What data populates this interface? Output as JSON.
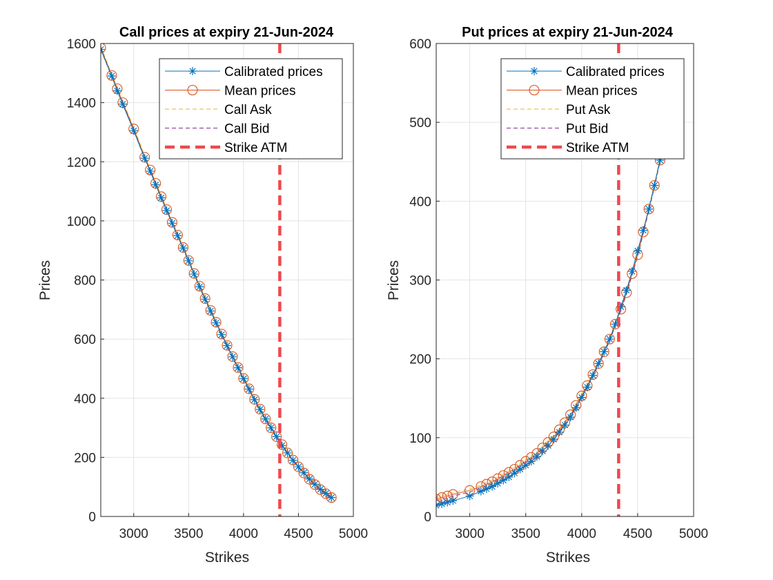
{
  "chart_data": [
    {
      "type": "line",
      "title": "Call prices at expiry 21-Jun-2024",
      "xlabel": "Strikes",
      "ylabel": "Prices",
      "xlim": [
        2700,
        5000
      ],
      "ylim": [
        0,
        1600
      ],
      "xticks": [
        "3000",
        "3500",
        "4000",
        "4500",
        "5000"
      ],
      "yticks": [
        "0",
        "200",
        "400",
        "600",
        "800",
        "1000",
        "1200",
        "1400",
        "1600"
      ],
      "grid": true,
      "legend_position": "top-right",
      "legend": [
        "Calibrated prices",
        "Mean prices",
        "Call Ask",
        "Call Bid",
        "Strike ATM"
      ],
      "strike_atm": 4330,
      "strikes": [
        2700,
        2800,
        2850,
        2900,
        3000,
        3100,
        3150,
        3200,
        3250,
        3300,
        3350,
        3400,
        3450,
        3500,
        3550,
        3600,
        3650,
        3700,
        3750,
        3800,
        3850,
        3900,
        3950,
        4000,
        4050,
        4100,
        4150,
        4200,
        4250,
        4300,
        4350,
        4400,
        4450,
        4500,
        4550,
        4600,
        4650,
        4700,
        4750,
        4800
      ],
      "series": [
        {
          "name": "Calibrated prices",
          "values": [
            1580,
            1490,
            1440,
            1395,
            1305,
            1212,
            1168,
            1122,
            1078,
            1035,
            992,
            950,
            908,
            865,
            820,
            777,
            735,
            695,
            655,
            615,
            578,
            540,
            503,
            466,
            431,
            395,
            362,
            330,
            300,
            270,
            240,
            215,
            190,
            168,
            148,
            127,
            109,
            92,
            78,
            64
          ]
        },
        {
          "name": "Mean prices",
          "values": [
            1585,
            1492,
            1447,
            1400,
            1311,
            1215,
            1172,
            1127,
            1082,
            1038,
            995,
            952,
            910,
            866,
            822,
            779,
            737,
            697,
            657,
            617,
            579,
            541,
            504,
            467,
            432,
            396,
            363,
            330,
            300,
            270,
            243,
            215,
            191,
            168,
            147,
            126,
            108,
            91,
            77,
            64
          ]
        },
        {
          "name": "Call Ask",
          "values": [
            1590,
            1496,
            1451,
            1405,
            1316,
            1220,
            1176,
            1131,
            1086,
            1042,
            999,
            956,
            914,
            870,
            826,
            783,
            741,
            701,
            661,
            621,
            583,
            545,
            508,
            471,
            436,
            400,
            367,
            334,
            304,
            274,
            247,
            219,
            195,
            172,
            151,
            130,
            112,
            95,
            81,
            68
          ]
        },
        {
          "name": "Call Bid",
          "values": [
            1580,
            1488,
            1443,
            1395,
            1306,
            1210,
            1168,
            1123,
            1078,
            1034,
            991,
            948,
            906,
            862,
            818,
            775,
            733,
            693,
            653,
            613,
            575,
            537,
            500,
            463,
            428,
            392,
            359,
            326,
            296,
            266,
            239,
            211,
            187,
            164,
            143,
            122,
            104,
            87,
            73,
            60
          ]
        }
      ]
    },
    {
      "type": "line",
      "title": "Put prices at expiry 21-Jun-2024",
      "xlabel": "Strikes",
      "ylabel": "Prices",
      "xlim": [
        2700,
        5000
      ],
      "ylim": [
        0,
        600
      ],
      "xticks": [
        "3000",
        "3500",
        "4000",
        "4500",
        "5000"
      ],
      "yticks": [
        "0",
        "100",
        "200",
        "300",
        "400",
        "500",
        "600"
      ],
      "grid": true,
      "legend_position": "top-right",
      "legend": [
        "Calibrated prices",
        "Mean prices",
        "Put Ask",
        "Put Bid",
        "Strike ATM"
      ],
      "strike_atm": 4330,
      "strikes": [
        2700,
        2750,
        2800,
        2850,
        3000,
        3100,
        3150,
        3200,
        3250,
        3300,
        3350,
        3400,
        3450,
        3500,
        3550,
        3600,
        3650,
        3700,
        3750,
        3800,
        3850,
        3900,
        3950,
        4000,
        4050,
        4100,
        4150,
        4200,
        4250,
        4300,
        4350,
        4400,
        4450,
        4500,
        4550,
        4600,
        4650,
        4700
      ],
      "series": [
        {
          "name": "Calibrated prices",
          "values": [
            14,
            16,
            18,
            20,
            26,
            32,
            35,
            38,
            42,
            46,
            50,
            55,
            60,
            65,
            70,
            76,
            83,
            90,
            98,
            107,
            116,
            126,
            138,
            151,
            164,
            179,
            194,
            209,
            225,
            244,
            266,
            287,
            311,
            337,
            363,
            390,
            420,
            452
          ]
        },
        {
          "name": "Mean prices",
          "values": [
            22,
            24,
            26,
            28,
            33,
            38,
            41,
            44,
            48,
            52,
            56,
            60,
            65,
            70,
            75,
            80,
            87,
            94,
            101,
            110,
            119,
            129,
            141,
            153,
            166,
            180,
            194,
            209,
            225,
            244,
            263,
            284,
            308,
            332,
            361,
            390,
            420,
            452
          ]
        },
        {
          "name": "Put Ask",
          "values": [
            24,
            26,
            28,
            30,
            35,
            40,
            43,
            46,
            50,
            54,
            58,
            62,
            67,
            72,
            77,
            82,
            89,
            96,
            103,
            112,
            121,
            131,
            143,
            155,
            168,
            182,
            196,
            211,
            227,
            246,
            265,
            286,
            310,
            334,
            363,
            392,
            422,
            454
          ]
        },
        {
          "name": "Put Bid",
          "values": [
            20,
            22,
            24,
            26,
            31,
            36,
            39,
            42,
            46,
            50,
            54,
            58,
            63,
            68,
            73,
            78,
            85,
            92,
            99,
            108,
            117,
            127,
            139,
            151,
            164,
            178,
            192,
            207,
            223,
            242,
            261,
            282,
            306,
            330,
            359,
            388,
            418,
            450
          ]
        }
      ]
    }
  ],
  "colors": {
    "calibrated": "#0072BD",
    "mean": "#D95319",
    "ask": "#EDB120",
    "bid": "#7E2F8E",
    "atm": "#F0484E",
    "grid": "#e3e3e3",
    "axis": "#262626"
  }
}
